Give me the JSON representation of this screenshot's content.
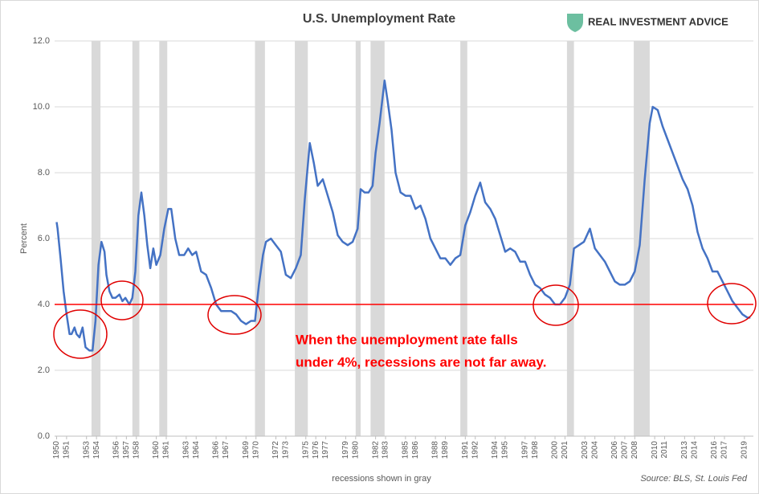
{
  "chart_data": {
    "type": "line",
    "title": "U.S. Unemployment Rate",
    "brand": "REAL INVESTMENT ADVICE",
    "ylabel": "Percent",
    "note": "recessions shown in gray",
    "source": "Source: BLS, St. Louis Fed",
    "annotation": [
      "When the unemployment rate falls",
      "under 4%, recessions are not far away."
    ],
    "color": "#4472c4",
    "reference_line": 4.0,
    "reference_color": "#ff0000",
    "recession_color": "#d9d9d9",
    "grid": true,
    "xlim": [
      1949.8,
      2019.9
    ],
    "ylim": [
      0,
      12
    ],
    "yticks": [
      {
        "value": 0,
        "label": "0.0"
      },
      {
        "value": 2,
        "label": "2.0"
      },
      {
        "value": 4,
        "label": "4.0"
      },
      {
        "value": 6,
        "label": "6.0"
      },
      {
        "value": 8,
        "label": "8.0"
      },
      {
        "value": 10,
        "label": "10.0"
      },
      {
        "value": 12,
        "label": "12.0"
      }
    ],
    "xticks": [
      1950,
      1951,
      1953,
      1954,
      1956,
      1957,
      1958,
      1960,
      1961,
      1963,
      1964,
      1966,
      1967,
      1969,
      1970,
      1972,
      1973,
      1975,
      1976,
      1977,
      1979,
      1980,
      1982,
      1983,
      1985,
      1986,
      1988,
      1989,
      1991,
      1992,
      1994,
      1995,
      1997,
      1998,
      2000,
      2001,
      2003,
      2004,
      2006,
      2007,
      2008,
      2010,
      2011,
      2013,
      2014,
      2016,
      2017,
      2019
    ],
    "recessions": [
      [
        1953.5,
        1954.4
      ],
      [
        1957.6,
        1958.3
      ],
      [
        1960.3,
        1961.1
      ],
      [
        1969.9,
        1970.9
      ],
      [
        1973.9,
        1975.2
      ],
      [
        1980.0,
        1980.5
      ],
      [
        1981.5,
        1982.9
      ],
      [
        1990.5,
        1991.2
      ],
      [
        2001.2,
        2001.9
      ],
      [
        2007.9,
        2009.5
      ]
    ],
    "x": [
      1950.0,
      1950.1,
      1950.4,
      1950.7,
      1951.0,
      1951.3,
      1951.5,
      1951.8,
      1952.0,
      1952.3,
      1952.6,
      1952.9,
      1953.3,
      1953.6,
      1953.9,
      1954.2,
      1954.5,
      1954.8,
      1955.0,
      1955.3,
      1955.6,
      1955.9,
      1956.3,
      1956.6,
      1956.9,
      1957.3,
      1957.6,
      1957.9,
      1958.2,
      1958.5,
      1958.8,
      1959.1,
      1959.4,
      1959.7,
      1960.0,
      1960.4,
      1960.8,
      1961.2,
      1961.5,
      1961.9,
      1962.3,
      1962.8,
      1963.2,
      1963.6,
      1964.0,
      1964.5,
      1965.0,
      1965.5,
      1966.0,
      1966.5,
      1967.0,
      1967.5,
      1968.0,
      1968.5,
      1969.0,
      1969.5,
      1969.9,
      1970.3,
      1970.7,
      1971.0,
      1971.5,
      1972.0,
      1972.5,
      1973.0,
      1973.5,
      1974.0,
      1974.5,
      1974.9,
      1975.4,
      1975.8,
      1976.2,
      1976.7,
      1977.2,
      1977.7,
      1978.2,
      1978.7,
      1979.2,
      1979.7,
      1980.2,
      1980.5,
      1980.9,
      1981.3,
      1981.7,
      1982.0,
      1982.4,
      1982.9,
      1983.2,
      1983.6,
      1984.0,
      1984.5,
      1985.0,
      1985.5,
      1986.0,
      1986.5,
      1987.0,
      1987.5,
      1988.0,
      1988.5,
      1989.0,
      1989.5,
      1990.0,
      1990.5,
      1991.0,
      1991.5,
      1992.0,
      1992.5,
      1993.0,
      1993.5,
      1994.0,
      1994.5,
      1995.0,
      1995.5,
      1996.0,
      1996.5,
      1997.0,
      1997.5,
      1998.0,
      1998.5,
      1999.0,
      1999.5,
      2000.0,
      2000.5,
      2001.0,
      2001.5,
      2001.9,
      2002.4,
      2002.9,
      2003.5,
      2004.0,
      2004.5,
      2005.0,
      2005.5,
      2006.0,
      2006.5,
      2007.0,
      2007.5,
      2008.0,
      2008.5,
      2009.0,
      2009.5,
      2009.8,
      2010.3,
      2010.8,
      2011.3,
      2011.8,
      2012.3,
      2012.8,
      2013.3,
      2013.8,
      2014.3,
      2014.8,
      2015.3,
      2015.8,
      2016.3,
      2016.8,
      2017.3,
      2017.8,
      2018.3,
      2018.8,
      2019.3,
      2019.6
    ],
    "values": [
      6.5,
      6.3,
      5.4,
      4.4,
      3.7,
      3.1,
      3.1,
      3.3,
      3.1,
      3.0,
      3.3,
      2.7,
      2.6,
      2.6,
      3.5,
      5.2,
      5.9,
      5.6,
      4.9,
      4.4,
      4.2,
      4.2,
      4.3,
      4.1,
      4.2,
      4.0,
      4.2,
      5.0,
      6.7,
      7.4,
      6.7,
      5.8,
      5.1,
      5.7,
      5.2,
      5.5,
      6.3,
      6.9,
      6.9,
      6.0,
      5.5,
      5.5,
      5.7,
      5.5,
      5.6,
      5.0,
      4.9,
      4.5,
      4.0,
      3.8,
      3.8,
      3.8,
      3.7,
      3.5,
      3.4,
      3.5,
      3.5,
      4.6,
      5.5,
      5.9,
      6.0,
      5.8,
      5.6,
      4.9,
      4.8,
      5.1,
      5.5,
      7.2,
      8.9,
      8.3,
      7.6,
      7.8,
      7.3,
      6.8,
      6.1,
      5.9,
      5.8,
      5.9,
      6.3,
      7.5,
      7.4,
      7.4,
      7.6,
      8.6,
      9.5,
      10.8,
      10.2,
      9.3,
      8.0,
      7.4,
      7.3,
      7.3,
      6.9,
      7.0,
      6.6,
      6.0,
      5.7,
      5.4,
      5.4,
      5.2,
      5.4,
      5.5,
      6.4,
      6.8,
      7.3,
      7.7,
      7.1,
      6.9,
      6.6,
      6.1,
      5.6,
      5.7,
      5.6,
      5.3,
      5.3,
      4.9,
      4.6,
      4.5,
      4.3,
      4.2,
      4.0,
      4.0,
      4.2,
      4.6,
      5.7,
      5.8,
      5.9,
      6.3,
      5.7,
      5.5,
      5.3,
      5.0,
      4.7,
      4.6,
      4.6,
      4.7,
      5.0,
      5.8,
      7.8,
      9.5,
      10.0,
      9.9,
      9.4,
      9.0,
      8.6,
      8.2,
      7.8,
      7.5,
      7.0,
      6.2,
      5.7,
      5.4,
      5.0,
      5.0,
      4.7,
      4.4,
      4.1,
      3.9,
      3.7,
      3.6,
      3.6
    ]
  }
}
